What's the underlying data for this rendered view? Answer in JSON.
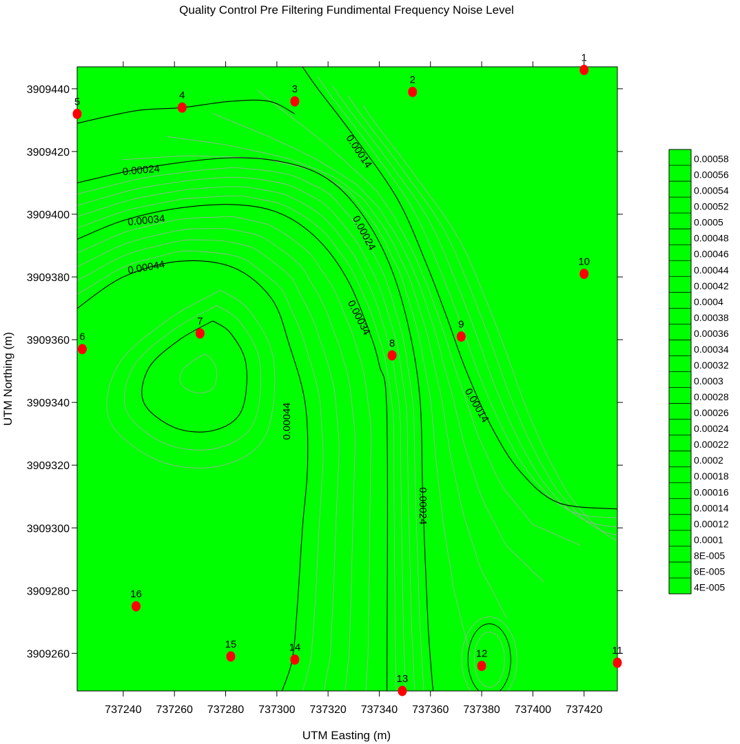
{
  "chart_data": {
    "type": "contour",
    "title": "Quality Control Pre Filtering Fundimental Frequency Noise Level",
    "xlabel": "UTM Easting (m)",
    "ylabel": "UTM Northing (m)",
    "xlim": [
      737222,
      737433
    ],
    "ylim": [
      3909248,
      3909447
    ],
    "x_ticks": [
      737240,
      737260,
      737280,
      737300,
      737320,
      737340,
      737360,
      737380,
      737400,
      737420
    ],
    "y_ticks": [
      3909260,
      3909280,
      3909300,
      3909320,
      3909340,
      3909360,
      3909380,
      3909400,
      3909420,
      3909440
    ],
    "fill_color": "#00ff00",
    "major_contour_color": "#000000",
    "minor_contour_color": "#aaaaaa",
    "marker_color": "#ff0000",
    "points": [
      {
        "label": "1",
        "x": 737420,
        "y": 3909446
      },
      {
        "label": "2",
        "x": 737353,
        "y": 3909439
      },
      {
        "label": "3",
        "x": 737307,
        "y": 3909436
      },
      {
        "label": "4",
        "x": 737263,
        "y": 3909434
      },
      {
        "label": "5",
        "x": 737222,
        "y": 3909432
      },
      {
        "label": "6",
        "x": 737224,
        "y": 3909357
      },
      {
        "label": "7",
        "x": 737270,
        "y": 3909362
      },
      {
        "label": "8",
        "x": 737345,
        "y": 3909355
      },
      {
        "label": "9",
        "x": 737372,
        "y": 3909361
      },
      {
        "label": "10",
        "x": 737420,
        "y": 3909381
      },
      {
        "label": "11",
        "x": 737433,
        "y": 3909257
      },
      {
        "label": "12",
        "x": 737380,
        "y": 3909256
      },
      {
        "label": "13",
        "x": 737349,
        "y": 3909248
      },
      {
        "label": "14",
        "x": 737307,
        "y": 3909258
      },
      {
        "label": "15",
        "x": 737282,
        "y": 3909259
      },
      {
        "label": "16",
        "x": 737245,
        "y": 3909275
      }
    ],
    "major_contours": [
      {
        "level": "0.00014",
        "points": [
          [
            737310,
            3909447
          ],
          [
            737316,
            3909440
          ],
          [
            737330,
            3909425
          ],
          [
            737347,
            3909405
          ],
          [
            737358,
            3909385
          ],
          [
            737366,
            3909368
          ],
          [
            737374,
            3909350
          ],
          [
            737384,
            3909332
          ],
          [
            737395,
            3909318
          ],
          [
            737410,
            3909308
          ],
          [
            737433,
            3909306
          ]
        ]
      },
      {
        "level": "0.00024",
        "points": [
          [
            737222,
            3909410
          ],
          [
            737250,
            3909415
          ],
          [
            737283,
            3909418
          ],
          [
            737306,
            3909416
          ],
          [
            737322,
            3909410
          ],
          [
            737335,
            3909398
          ],
          [
            737345,
            3909382
          ],
          [
            737352,
            3909362
          ],
          [
            737356,
            3909340
          ],
          [
            737357,
            3909310
          ],
          [
            737359,
            3909270
          ],
          [
            737361,
            3909248
          ]
        ]
      },
      {
        "level": "0.00024",
        "points": [
          [
            737222,
            3909429
          ],
          [
            737245,
            3909433
          ],
          [
            737263,
            3909434
          ],
          [
            737282,
            3909436
          ],
          [
            737297,
            3909436
          ],
          [
            737307,
            3909432
          ]
        ]
      },
      {
        "level": "0.00034",
        "points": [
          [
            737222,
            3909392
          ],
          [
            737240,
            3909398
          ],
          [
            737262,
            3909402
          ],
          [
            737285,
            3909403
          ],
          [
            737302,
            3909400
          ],
          [
            737316,
            3909392
          ],
          [
            737327,
            3909380
          ],
          [
            737335,
            3909365
          ],
          [
            737340,
            3909352
          ],
          [
            737343,
            3909335
          ],
          [
            737343,
            3909248
          ]
        ]
      },
      {
        "level": "0.00044",
        "points": [
          [
            737222,
            3909370
          ],
          [
            737240,
            3909380
          ],
          [
            737262,
            3909385
          ],
          [
            737283,
            3909383
          ],
          [
            737298,
            3909373
          ],
          [
            737305,
            3909358
          ],
          [
            737311,
            3909340
          ],
          [
            737312,
            3909320
          ],
          [
            737310,
            3909300
          ],
          [
            737308,
            3909275
          ],
          [
            737306,
            3909258
          ],
          [
            737302,
            3909248
          ]
        ]
      },
      {
        "level": "",
        "points": [
          [
            737275,
            3909366
          ],
          [
            737262,
            3909360
          ],
          [
            737250,
            3909351
          ],
          [
            737248,
            3909340
          ],
          [
            737260,
            3909332
          ],
          [
            737275,
            3909331
          ],
          [
            737286,
            3909337
          ],
          [
            737288,
            3909352
          ],
          [
            737282,
            3909362
          ],
          [
            737275,
            3909366
          ]
        ]
      }
    ],
    "contour_labels": [
      {
        "text": "0.00014",
        "x": 737332,
        "y": 3909420,
        "angle": 56
      },
      {
        "text": "0.00024",
        "x": 737247,
        "y": 3909414,
        "angle": -5
      },
      {
        "text": "0.00024",
        "x": 737334,
        "y": 3909394,
        "angle": 62
      },
      {
        "text": "0.00034",
        "x": 737249,
        "y": 3909398,
        "angle": -6
      },
      {
        "text": "0.00044",
        "x": 737249,
        "y": 3909383,
        "angle": -10
      },
      {
        "text": "0.00034",
        "x": 737332,
        "y": 3909367,
        "angle": 63
      },
      {
        "text": "0.00014",
        "x": 737378,
        "y": 3909339,
        "angle": 60
      },
      {
        "text": "0.00044",
        "x": 737304,
        "y": 3909334,
        "angle": -90
      },
      {
        "text": "0.00024",
        "x": 737357,
        "y": 3909307,
        "angle": 90
      }
    ],
    "legend": {
      "placement": "right",
      "entries": [
        "0.00058",
        "0.00056",
        "0.00054",
        "0.00052",
        "0.0005",
        "0.00048",
        "0.00046",
        "0.00044",
        "0.00042",
        "0.0004",
        "0.00038",
        "0.00036",
        "0.00034",
        "0.00032",
        "0.0003",
        "0.00028",
        "0.00026",
        "0.00024",
        "0.00022",
        "0.0002",
        "0.00018",
        "0.00016",
        "0.00014",
        "0.00012",
        "0.0001",
        "8E-005",
        "6E-005",
        "4E-005"
      ]
    }
  }
}
